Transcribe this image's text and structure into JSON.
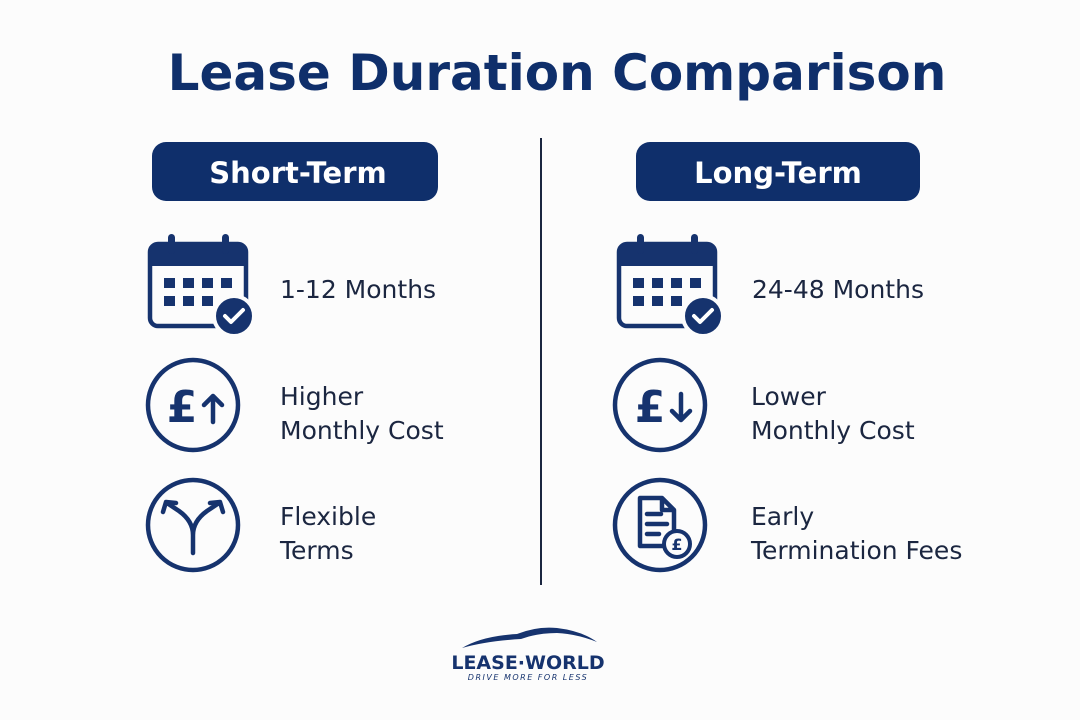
{
  "title": "Lease Duration Comparison",
  "columns": [
    {
      "heading": "Short-Term",
      "items": [
        {
          "lines": [
            "1-12 Months"
          ]
        },
        {
          "lines": [
            "Higher",
            "Monthly Cost"
          ]
        },
        {
          "lines": [
            "Flexible",
            "Terms"
          ]
        }
      ]
    },
    {
      "heading": "Long-Term",
      "items": [
        {
          "lines": [
            "24-48 Months"
          ]
        },
        {
          "lines": [
            "Lower",
            "Monthly Cost"
          ]
        },
        {
          "lines": [
            "Early",
            "Termination Fees"
          ]
        }
      ]
    }
  ],
  "logo": {
    "name": "LEASE·WORLD",
    "tagline": "DRIVE MORE FOR LESS"
  }
}
